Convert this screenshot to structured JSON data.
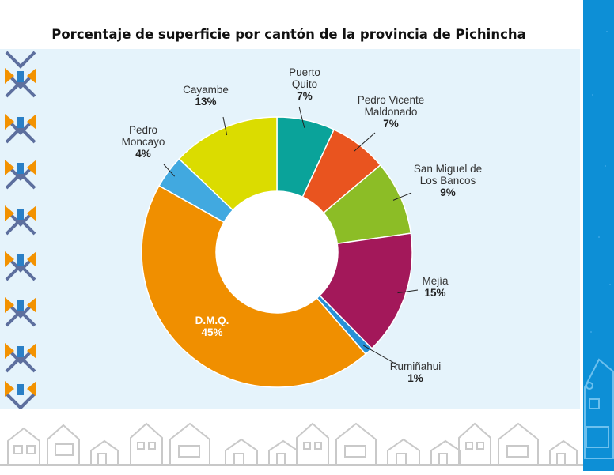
{
  "chart_data": {
    "type": "pie",
    "title": "Porcentaje de superficie por cantón de la provincia de Pichincha",
    "donut": true,
    "slices": [
      {
        "label": "Puerto Quito",
        "value": 7,
        "color": "#0aa39a"
      },
      {
        "label": "Pedro Vicente Maldonado",
        "value": 7,
        "color": "#e9541f"
      },
      {
        "label": "San Miguel de Los Bancos",
        "value": 9,
        "color": "#8cbd26"
      },
      {
        "label": "Mejía",
        "value": 15,
        "color": "#a3185a"
      },
      {
        "label": "Rumiñahui",
        "value": 1,
        "color": "#2690d6"
      },
      {
        "label": "D.M.Q.",
        "value": 45,
        "color": "#f08f00"
      },
      {
        "label": "Pedro Moncayo",
        "value": 4,
        "color": "#41a9e0"
      },
      {
        "label": "Cayambe",
        "value": 13,
        "color": "#dbdc00"
      }
    ],
    "labels": [
      {
        "lines": [
          "Puerto",
          "Quito"
        ],
        "pct": "7%"
      },
      {
        "lines": [
          "Pedro Vicente",
          "Maldonado"
        ],
        "pct": "7%"
      },
      {
        "lines": [
          "San Miguel de",
          "Los Bancos"
        ],
        "pct": "9%"
      },
      {
        "lines": [
          "Mejía"
        ],
        "pct": "15%"
      },
      {
        "lines": [
          "Rumiñahui"
        ],
        "pct": "1%"
      },
      {
        "lines": [
          "D.M.Q."
        ],
        "pct": "45%"
      },
      {
        "lines": [
          "Pedro",
          "Moncayo"
        ],
        "pct": "4%"
      },
      {
        "lines": [
          "Cayambe"
        ],
        "pct": "13%"
      }
    ]
  }
}
